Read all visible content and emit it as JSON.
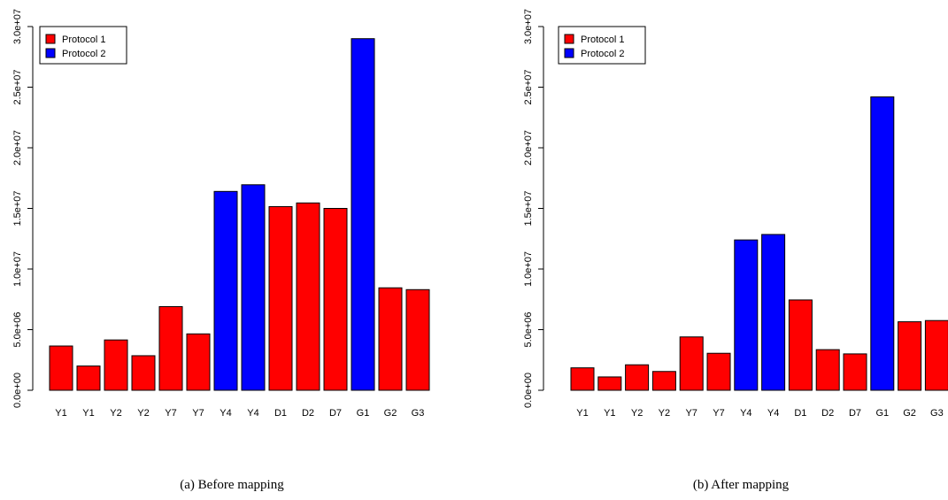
{
  "colors": {
    "Protocol 1": "#ff0000",
    "Protocol 2": "#0000ff"
  },
  "chart_data": [
    {
      "type": "bar",
      "caption": "(a) Before mapping",
      "categories": [
        "Y1",
        "Y1",
        "Y2",
        "Y2",
        "Y7",
        "Y7",
        "Y4",
        "Y4",
        "D1",
        "D2",
        "D7",
        "G1",
        "G2",
        "G3"
      ],
      "values": [
        3650000,
        2000000,
        4150000,
        2850000,
        6900000,
        4650000,
        16400000,
        16950000,
        15150000,
        15450000,
        15000000,
        29000000,
        8450000,
        8300000
      ],
      "groups": [
        "Protocol 1",
        "Protocol 1",
        "Protocol 1",
        "Protocol 1",
        "Protocol 1",
        "Protocol 1",
        "Protocol 2",
        "Protocol 2",
        "Protocol 1",
        "Protocol 1",
        "Protocol 1",
        "Protocol 2",
        "Protocol 1",
        "Protocol 1"
      ],
      "legend": [
        "Protocol 1",
        "Protocol 2"
      ],
      "legend_position": "top-left",
      "yticks": [
        "0.0e+00",
        "5.0e+06",
        "1.0e+07",
        "1.5e+07",
        "2.0e+07",
        "2.5e+07",
        "3.0e+07"
      ],
      "ylim": [
        0,
        30000000
      ]
    },
    {
      "type": "bar",
      "caption": "(b) After mapping",
      "categories": [
        "Y1",
        "Y1",
        "Y2",
        "Y2",
        "Y7",
        "Y7",
        "Y4",
        "Y4",
        "D1",
        "D2",
        "D7",
        "G1",
        "G2",
        "G3"
      ],
      "values": [
        1850000,
        1100000,
        2100000,
        1550000,
        4400000,
        3050000,
        12400000,
        12850000,
        7450000,
        3350000,
        3000000,
        24200000,
        5650000,
        5750000
      ],
      "groups": [
        "Protocol 1",
        "Protocol 1",
        "Protocol 1",
        "Protocol 1",
        "Protocol 1",
        "Protocol 1",
        "Protocol 2",
        "Protocol 2",
        "Protocol 1",
        "Protocol 1",
        "Protocol 1",
        "Protocol 2",
        "Protocol 1",
        "Protocol 1"
      ],
      "legend": [
        "Protocol 1",
        "Protocol 2"
      ],
      "legend_position": "top-left",
      "yticks": [
        "0.0e+00",
        "5.0e+06",
        "1.0e+07",
        "1.5e+07",
        "2.0e+07",
        "2.5e+07",
        "3.0e+07"
      ],
      "ylim": [
        0,
        30000000
      ]
    }
  ]
}
